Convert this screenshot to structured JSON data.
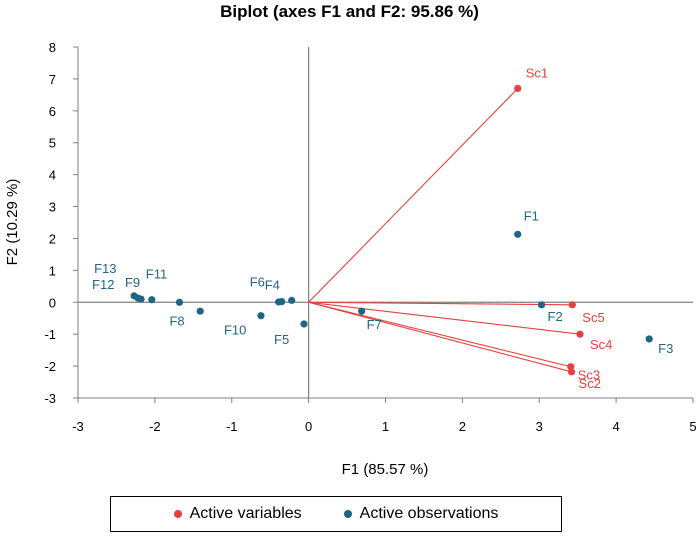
{
  "chart_data": {
    "type": "scatter",
    "title": "Biplot (axes F1 and F2: 95.86 %)",
    "xlabel": "F1 (85.57 %)",
    "ylabel": "F2 (10.29 %)",
    "xlim": [
      -3,
      5
    ],
    "ylim": [
      -3,
      8
    ],
    "xticks": [
      -3,
      -2,
      -1,
      0,
      1,
      2,
      3,
      4,
      5
    ],
    "yticks": [
      -3,
      -2,
      -1,
      0,
      1,
      2,
      3,
      4,
      5,
      6,
      7,
      8
    ],
    "colors": {
      "variables": "#e84040",
      "observations": "#1f6686"
    },
    "series": [
      {
        "name": "Active variables",
        "vectors": true,
        "points": [
          {
            "label": "Sc1",
            "x": 2.72,
            "y": 6.7
          },
          {
            "label": "Sc5",
            "x": 3.43,
            "y": -0.08
          },
          {
            "label": "Sc4",
            "x": 3.53,
            "y": -1.0
          },
          {
            "label": "Sc3",
            "x": 3.41,
            "y": -2.02
          },
          {
            "label": "Sc2",
            "x": 3.42,
            "y": -2.18
          }
        ]
      },
      {
        "name": "Active observations",
        "vectors": false,
        "points": [
          {
            "label": "F1",
            "x": 2.72,
            "y": 2.13
          },
          {
            "label": "F2",
            "x": 3.03,
            "y": -0.08
          },
          {
            "label": "F3",
            "x": 4.43,
            "y": -1.15
          },
          {
            "label": "F4",
            "x": -0.35,
            "y": 0.02
          },
          {
            "label": "F5",
            "x": -0.06,
            "y": -0.68
          },
          {
            "label": "F6",
            "x": -0.22,
            "y": 0.06
          },
          {
            "label": "F7",
            "x": 0.69,
            "y": -0.28
          },
          {
            "label": "F8",
            "x": -1.68,
            "y": 0.0
          },
          {
            "label": "F9",
            "x": -2.22,
            "y": 0.13
          },
          {
            "label": "F10",
            "x": -0.62,
            "y": -0.42
          },
          {
            "label": "F11",
            "x": -2.04,
            "y": 0.08
          },
          {
            "label": "F12",
            "x": -2.18,
            "y": 0.1
          },
          {
            "label": "F13",
            "x": -2.27,
            "y": 0.2
          },
          {
            "label": "",
            "x": -1.41,
            "y": -0.28
          },
          {
            "label": "",
            "x": -0.39,
            "y": 0.01
          }
        ]
      }
    ],
    "legend": {
      "position": "bottom",
      "entries": [
        "Active variables",
        "Active observations"
      ]
    }
  }
}
